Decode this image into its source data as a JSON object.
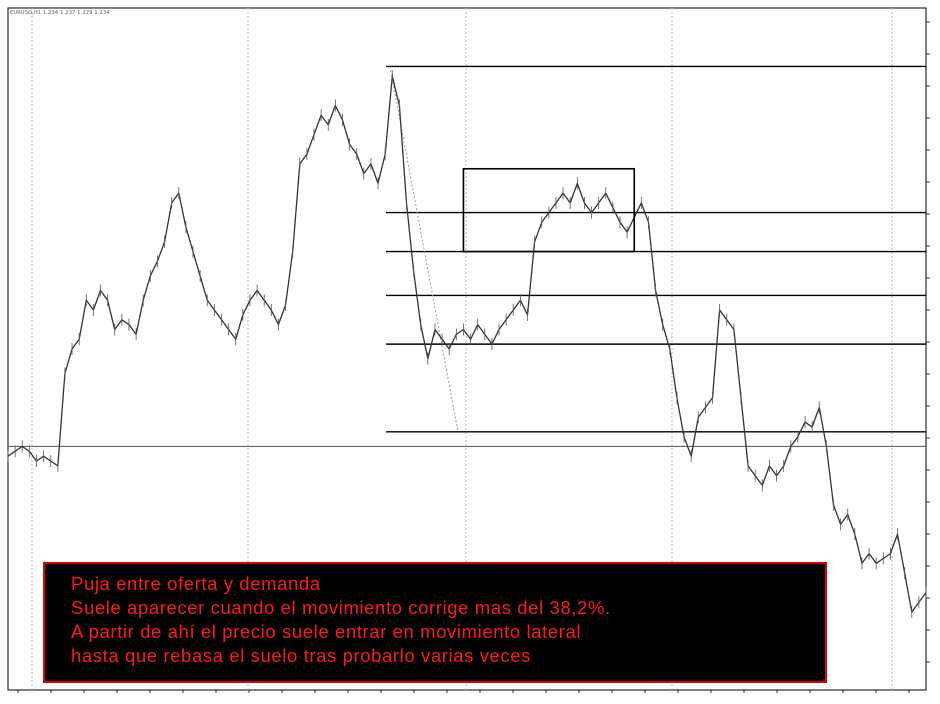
{
  "symbol_header": "EURUSD,H1  1.234 1.237 1.229 1.234",
  "note": {
    "lines": [
      "Puja entre oferta y demanda",
      "Suele aparecer cuando el movimiento corrige mas del 38,2%.",
      "A partir de ahí el precio suele entrar en movimiento lateral",
      "hasta que rebasa el suelo tras probarlo varias veces"
    ],
    "text_color": "#ff1a1a",
    "background": "#000000",
    "border_color": "#e00000"
  },
  "chart_data": {
    "type": "line",
    "title": "",
    "xlabel": "",
    "ylabel": "",
    "grid": true,
    "series": [
      {
        "values": [
          0.18,
          0.19,
          0.2,
          0.19,
          0.17,
          0.18,
          0.17,
          0.16,
          0.35,
          0.4,
          0.42,
          0.5,
          0.48,
          0.52,
          0.5,
          0.44,
          0.46,
          0.45,
          0.43,
          0.5,
          0.55,
          0.58,
          0.62,
          0.7,
          0.72,
          0.65,
          0.6,
          0.55,
          0.5,
          0.48,
          0.46,
          0.44,
          0.42,
          0.47,
          0.5,
          0.52,
          0.5,
          0.48,
          0.45,
          0.49,
          0.6,
          0.78,
          0.8,
          0.84,
          0.88,
          0.86,
          0.9,
          0.87,
          0.82,
          0.8,
          0.76,
          0.78,
          0.74,
          0.8,
          0.96,
          0.9,
          0.7,
          0.56,
          0.45,
          0.38,
          0.44,
          0.42,
          0.4,
          0.43,
          0.44,
          0.42,
          0.45,
          0.43,
          0.41,
          0.44,
          0.46,
          0.48,
          0.5,
          0.47,
          0.62,
          0.66,
          0.68,
          0.7,
          0.72,
          0.7,
          0.74,
          0.7,
          0.68,
          0.7,
          0.72,
          0.69,
          0.66,
          0.64,
          0.67,
          0.7,
          0.66,
          0.52,
          0.45,
          0.4,
          0.3,
          0.22,
          0.18,
          0.26,
          0.28,
          0.3,
          0.48,
          0.46,
          0.44,
          0.3,
          0.16,
          0.14,
          0.12,
          0.16,
          0.14,
          0.16,
          0.2,
          0.22,
          0.25,
          0.24,
          0.28,
          0.2,
          0.08,
          0.04,
          0.06,
          0.02,
          -0.04,
          -0.02,
          -0.04,
          -0.03,
          -0.02,
          0.02,
          -0.06,
          -0.14,
          -0.12,
          -0.1
        ]
      }
    ],
    "reference_lines": [
      {
        "kind": "fibonacci",
        "levels": [
          0.98,
          0.68,
          0.6,
          0.51,
          0.41,
          0.23
        ]
      },
      {
        "kind": "horizontal",
        "level": 0.2
      }
    ],
    "highlight_box": {
      "x_start_index": 64,
      "x_end_index": 88,
      "y_low": 0.6,
      "y_high": 0.77
    },
    "ylim": [
      -0.3,
      1.1
    ]
  }
}
